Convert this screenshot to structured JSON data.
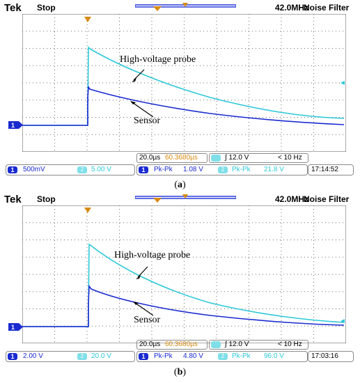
{
  "panels": [
    {
      "brand": "Tek",
      "state": "Stop",
      "bandwidth": "42.0MHz",
      "filter": "Noise Filter",
      "ch1_marker": "1",
      "label_probe": "High-voltage probe",
      "label_sensor": "Sensor",
      "timebase": "20.0µs",
      "trigger_pos": "60.3680µs",
      "trigger_level": "12.0 V",
      "trigger_freq": "< 10 Hz",
      "ch1_scale": "500mV",
      "ch2_scale": "5.00 V",
      "meas1_name": "Pk-Pk",
      "meas1_value": "1.08 V",
      "meas2_name": "Pk-Pk",
      "meas2_value": "21.8 V",
      "time": "17:14:52",
      "caption": "a",
      "colors": {
        "cyan": "#2cc8d8",
        "blue": "#1a2bd0"
      }
    },
    {
      "brand": "Tek",
      "state": "Stop",
      "bandwidth": "42.0MHz",
      "filter": "Noise Filter",
      "ch1_marker": "1",
      "label_probe": "High-voltage probe",
      "label_sensor": "Sensor",
      "timebase": "20.0µs",
      "trigger_pos": "60.3680µs",
      "trigger_level": "12.0 V",
      "trigger_freq": "< 10 Hz",
      "ch1_scale": "2.00 V",
      "ch2_scale": "20.0 V",
      "meas1_name": "Pk-Pk",
      "meas1_value": "4.80 V",
      "meas2_name": "Pk-Pk",
      "meas2_value": "96.0 V",
      "time": "17:03:16",
      "caption": "b",
      "colors": {
        "cyan": "#2cc8d8",
        "blue": "#1a2bd0"
      }
    }
  ]
}
